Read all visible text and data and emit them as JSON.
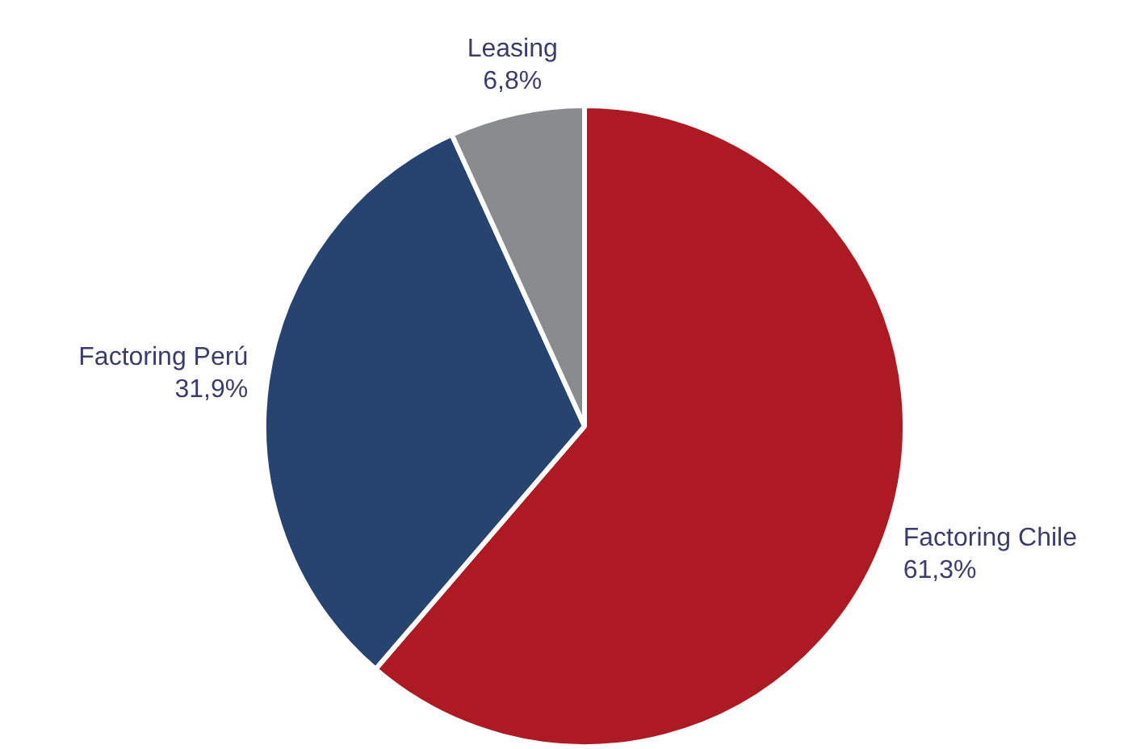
{
  "chart_data": {
    "type": "pie",
    "categories": [
      "Factoring Chile",
      "Factoring Perú",
      "Leasing"
    ],
    "values": [
      61.3,
      31.9,
      6.8
    ],
    "value_labels": [
      "61,3%",
      "31,9%",
      "6,8%"
    ],
    "colors": [
      "#ae1a24",
      "#274470",
      "#8a8b8d"
    ],
    "legend": false
  }
}
